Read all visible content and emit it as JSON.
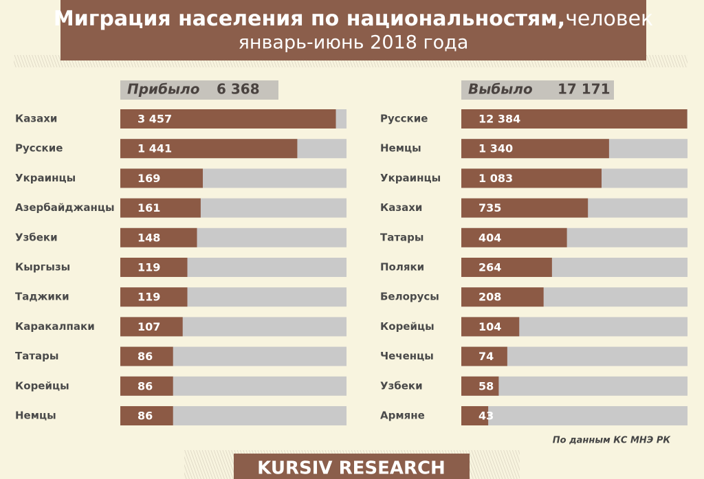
{
  "title": "Миграция населения по национальностям,",
  "unit": "человек",
  "subtitle": "январь-июнь 2018 года",
  "source": "По данным КС МНЭ РК",
  "footer": "KURSIV RESEARCH",
  "chart_data": [
    {
      "type": "bar",
      "orientation": "horizontal",
      "title": "Прибыло",
      "total": 6368,
      "total_label": "6 368",
      "categories": [
        "Казахи",
        "Русские",
        "Украинцы",
        "Азербайджанцы",
        "Узбеки",
        "Кыргызы",
        "Таджики",
        "Каракалпаки",
        "Татары",
        "Корейцы",
        "Немцы"
      ],
      "values": [
        3457,
        1441,
        169,
        161,
        148,
        119,
        119,
        107,
        86,
        86,
        86
      ],
      "value_labels": [
        "3 457",
        "1 441",
        "169",
        "161",
        "148",
        "119",
        "119",
        "107",
        "86",
        "86",
        "86"
      ],
      "color": "#8c5a45",
      "track_color": "#c9c9c9",
      "log_scale": true,
      "xlim": [
        26,
        4400
      ]
    },
    {
      "type": "bar",
      "orientation": "horizontal",
      "title": "Выбыло",
      "total": 17171,
      "total_label": "17 171",
      "categories": [
        "Русские",
        "Немцы",
        "Украинцы",
        "Казахи",
        "Татары",
        "Поляки",
        "Белорусы",
        "Корейцы",
        "Чеченцы",
        "Узбеки",
        "Армяне"
      ],
      "values": [
        12384,
        1340,
        1083,
        735,
        404,
        264,
        208,
        104,
        74,
        58,
        43
      ],
      "value_labels": [
        "12 384",
        "1 340",
        "1 083",
        "735",
        "404",
        "264",
        "208",
        "104",
        "74",
        "58",
        "43"
      ],
      "color": "#8c5a45",
      "track_color": "#c9c9c9",
      "log_scale": true,
      "xlim": [
        20,
        12500
      ]
    }
  ]
}
